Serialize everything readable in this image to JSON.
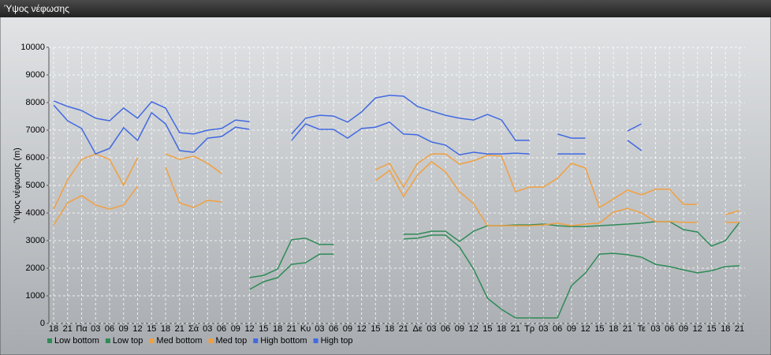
{
  "chart_data": {
    "type": "line",
    "title": "Ύψος νέφωσης",
    "y_label": "Ύψος νέφωσης (m)",
    "categories": [
      "18",
      "21",
      "Πα",
      "03",
      "06",
      "09",
      "12",
      "15",
      "18",
      "21",
      "Σά",
      "03",
      "06",
      "09",
      "12",
      "15",
      "18",
      "21",
      "Κυ",
      "03",
      "06",
      "09",
      "12",
      "15",
      "18",
      "21",
      "Δε",
      "03",
      "06",
      "09",
      "12",
      "15",
      "18",
      "21",
      "Τρ",
      "03",
      "06",
      "09",
      "12",
      "15",
      "18",
      "21",
      "Τε",
      "03",
      "06",
      "09",
      "12",
      "15",
      "18",
      "21"
    ],
    "ylim": [
      0,
      10000
    ],
    "yticks": [
      0,
      1000,
      2000,
      3000,
      4000,
      5000,
      6000,
      7000,
      8000,
      9000,
      10000
    ],
    "grid": true,
    "legend": "bottom-left",
    "series": [
      {
        "name": "Low bottom",
        "color": "#2e8b57",
        "values": [
          null,
          null,
          null,
          null,
          null,
          null,
          null,
          null,
          null,
          null,
          null,
          null,
          null,
          null,
          1230,
          1510,
          1660,
          2140,
          2200,
          2510,
          2510,
          null,
          null,
          null,
          null,
          3060,
          3090,
          3200,
          3200,
          2770,
          1970,
          910,
          510,
          200,
          200,
          200,
          200,
          1370,
          1830,
          2510,
          2540,
          2490,
          2400,
          2140,
          2060,
          1940,
          1830,
          1910,
          2060,
          2090
        ]
      },
      {
        "name": "Low top",
        "color": "#2e8b57",
        "values": [
          null,
          null,
          null,
          null,
          null,
          null,
          null,
          null,
          null,
          null,
          null,
          null,
          null,
          null,
          1660,
          1740,
          1970,
          3030,
          3090,
          2860,
          2860,
          null,
          null,
          null,
          null,
          3230,
          3230,
          3340,
          3340,
          2970,
          3340,
          3540,
          3540,
          3570,
          3570,
          3600,
          3540,
          3510,
          3510,
          3540,
          3570,
          3600,
          3630,
          3690,
          3690,
          3400,
          3310,
          2800,
          3000,
          3660
        ]
      },
      {
        "name": "Med bottom",
        "color": "#f0a040",
        "values": [
          3570,
          4370,
          4630,
          4290,
          4140,
          4290,
          4970,
          null,
          5660,
          4370,
          4200,
          4460,
          4400,
          null,
          null,
          null,
          null,
          null,
          null,
          null,
          null,
          null,
          null,
          5170,
          5540,
          4600,
          5370,
          5860,
          5490,
          4770,
          4340,
          3540,
          3540,
          3540,
          3540,
          3570,
          3630,
          3540,
          3600,
          3630,
          4030,
          4170,
          4000,
          3690,
          3690,
          3660,
          3660,
          null,
          3660,
          3660
        ]
      },
      {
        "name": "Med top",
        "color": "#f0a040",
        "values": [
          4140,
          5200,
          5940,
          6140,
          5940,
          5000,
          6000,
          null,
          6140,
          5940,
          6060,
          5800,
          5430,
          null,
          null,
          null,
          null,
          null,
          null,
          null,
          null,
          null,
          null,
          5570,
          5800,
          4940,
          5800,
          6140,
          6140,
          5770,
          5890,
          6090,
          6060,
          4770,
          4940,
          4940,
          5260,
          5800,
          5630,
          4200,
          4510,
          4830,
          4660,
          4860,
          4860,
          4310,
          4310,
          null,
          3940,
          4090
        ]
      },
      {
        "name": "High bottom",
        "color": "#4169e1",
        "values": [
          7910,
          7340,
          7060,
          6140,
          6340,
          7090,
          6630,
          7630,
          7230,
          6260,
          6200,
          6710,
          6770,
          7110,
          7030,
          null,
          null,
          6630,
          7230,
          7030,
          7030,
          6710,
          7060,
          7110,
          7290,
          6860,
          6830,
          6570,
          6460,
          6110,
          6200,
          6140,
          6140,
          6170,
          6140,
          null,
          6140,
          6140,
          6140,
          null,
          null,
          6630,
          6260,
          null,
          null,
          null,
          null,
          null,
          null,
          null
        ]
      },
      {
        "name": "High top",
        "color": "#4169e1",
        "values": [
          8060,
          7860,
          7710,
          7430,
          7340,
          7800,
          7430,
          8030,
          7800,
          6910,
          6860,
          7000,
          7060,
          7370,
          7310,
          null,
          null,
          6860,
          7430,
          7540,
          7510,
          7290,
          7660,
          8170,
          8260,
          8230,
          7860,
          7690,
          7540,
          7430,
          7370,
          7570,
          7370,
          6630,
          6630,
          null,
          6860,
          6710,
          6710,
          null,
          null,
          6970,
          7230,
          null,
          null,
          null,
          null,
          null,
          null,
          null
        ]
      }
    ]
  }
}
